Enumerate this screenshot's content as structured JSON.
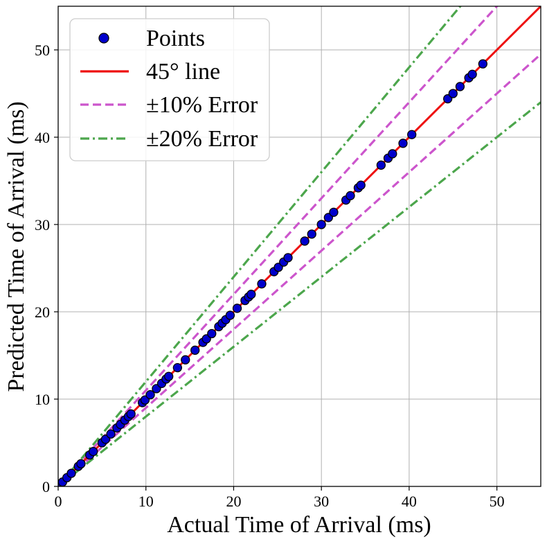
{
  "chart_data": {
    "type": "scatter",
    "title": "",
    "xlabel": "Actual Time of Arrival (ms)",
    "ylabel": "Predicted Time of Arrival (ms)",
    "xlim": [
      0,
      55
    ],
    "ylim": [
      0,
      55
    ],
    "xticks": [
      0,
      10,
      20,
      30,
      40,
      50
    ],
    "yticks": [
      0,
      10,
      20,
      30,
      40,
      50
    ],
    "grid": true,
    "legend_position": "top-left",
    "series": [
      {
        "name": "Points",
        "kind": "scatter",
        "color": "#0000cc",
        "edge_color": "#000000",
        "points": [
          [
            0.2,
            0.2
          ],
          [
            0.5,
            0.5
          ],
          [
            1.0,
            1.0
          ],
          [
            1.5,
            1.5
          ],
          [
            2.3,
            2.3
          ],
          [
            2.6,
            2.6
          ],
          [
            3.6,
            3.6
          ],
          [
            4.0,
            4.0
          ],
          [
            5.0,
            5.0
          ],
          [
            5.4,
            5.4
          ],
          [
            6.0,
            6.0
          ],
          [
            6.7,
            6.7
          ],
          [
            7.1,
            7.1
          ],
          [
            7.6,
            7.6
          ],
          [
            8.0,
            8.0
          ],
          [
            8.3,
            8.3
          ],
          [
            9.6,
            9.6
          ],
          [
            9.9,
            9.9
          ],
          [
            10.5,
            10.5
          ],
          [
            11.2,
            11.2
          ],
          [
            11.8,
            11.8
          ],
          [
            12.3,
            12.3
          ],
          [
            12.6,
            12.6
          ],
          [
            13.6,
            13.6
          ],
          [
            14.5,
            14.5
          ],
          [
            15.6,
            15.6
          ],
          [
            16.5,
            16.5
          ],
          [
            16.9,
            16.9
          ],
          [
            17.5,
            17.5
          ],
          [
            18.3,
            18.3
          ],
          [
            18.7,
            18.7
          ],
          [
            19.1,
            19.1
          ],
          [
            19.6,
            19.6
          ],
          [
            20.4,
            20.4
          ],
          [
            21.3,
            21.3
          ],
          [
            21.7,
            21.7
          ],
          [
            22.0,
            22.0
          ],
          [
            23.2,
            23.2
          ],
          [
            24.6,
            24.6
          ],
          [
            25.1,
            25.1
          ],
          [
            25.7,
            25.7
          ],
          [
            26.2,
            26.2
          ],
          [
            28.1,
            28.1
          ],
          [
            28.9,
            28.9
          ],
          [
            30.0,
            30.0
          ],
          [
            30.8,
            30.8
          ],
          [
            31.4,
            31.4
          ],
          [
            32.8,
            32.8
          ],
          [
            33.3,
            33.3
          ],
          [
            34.2,
            34.2
          ],
          [
            34.5,
            34.5
          ],
          [
            36.8,
            36.8
          ],
          [
            37.6,
            37.6
          ],
          [
            38.1,
            38.1
          ],
          [
            39.3,
            39.3
          ],
          [
            40.3,
            40.3
          ],
          [
            44.4,
            44.4
          ],
          [
            45.0,
            45.0
          ],
          [
            45.8,
            45.8
          ],
          [
            46.8,
            46.8
          ],
          [
            47.2,
            47.2
          ],
          [
            48.4,
            48.4
          ]
        ]
      },
      {
        "name": "45° line",
        "kind": "line",
        "slope": 1.0,
        "color": "#ee1111",
        "dash": "solid"
      },
      {
        "name": "±10% Error",
        "kind": "band",
        "slopes": [
          1.1,
          0.9
        ],
        "color": "#cc55cc",
        "dash": "dashed"
      },
      {
        "name": "±20% Error",
        "kind": "band",
        "slopes": [
          1.2,
          0.8
        ],
        "color": "#4ca64c",
        "dash": "dashdot"
      }
    ]
  }
}
